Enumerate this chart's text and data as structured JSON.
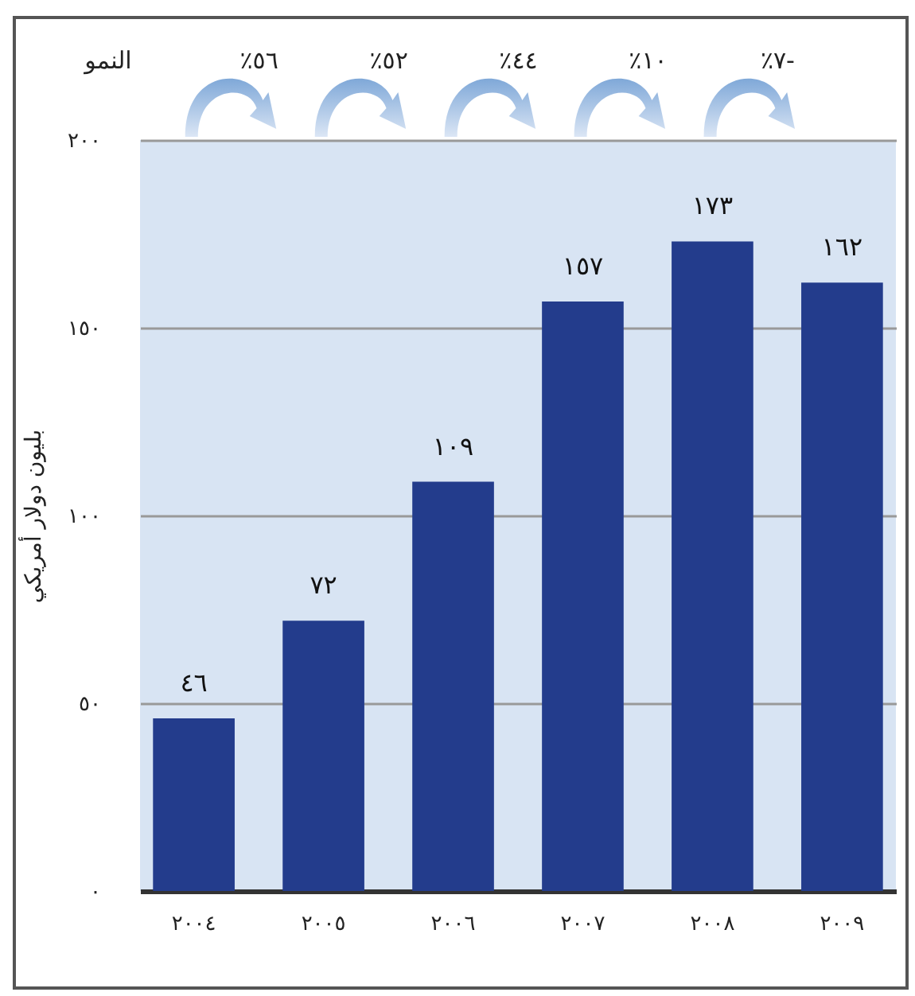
{
  "chart_data": {
    "type": "bar",
    "ylabel": "بليون دولار أمريكي",
    "categories": [
      "٢٠٠٤",
      "٢٠٠٥",
      "٢٠٠٦",
      "٢٠٠٧",
      "٢٠٠٨",
      "٢٠٠٩"
    ],
    "values": [
      46,
      72,
      109,
      157,
      173,
      162
    ],
    "color": "#233c8c",
    "value_labels": [
      "٤٦",
      "٧٢",
      "١٠٩",
      "١٥٧",
      "١٧٣",
      "١٦٢"
    ],
    "annotations": [
      "النمو",
      "٪٥٦",
      "٪٥٢",
      "٪٤٤",
      "٪١٠",
      "٪٧-"
    ],
    "ylim": [
      0,
      200
    ],
    "yticks": [
      {
        "value": 0,
        "label": "٠"
      },
      {
        "value": 50,
        "label": "٥٠"
      },
      {
        "value": 100,
        "label": "١٠٠"
      },
      {
        "value": 150,
        "label": "١٥٠"
      },
      {
        "value": 200,
        "label": "٢٠٠"
      }
    ],
    "grid": "y"
  }
}
